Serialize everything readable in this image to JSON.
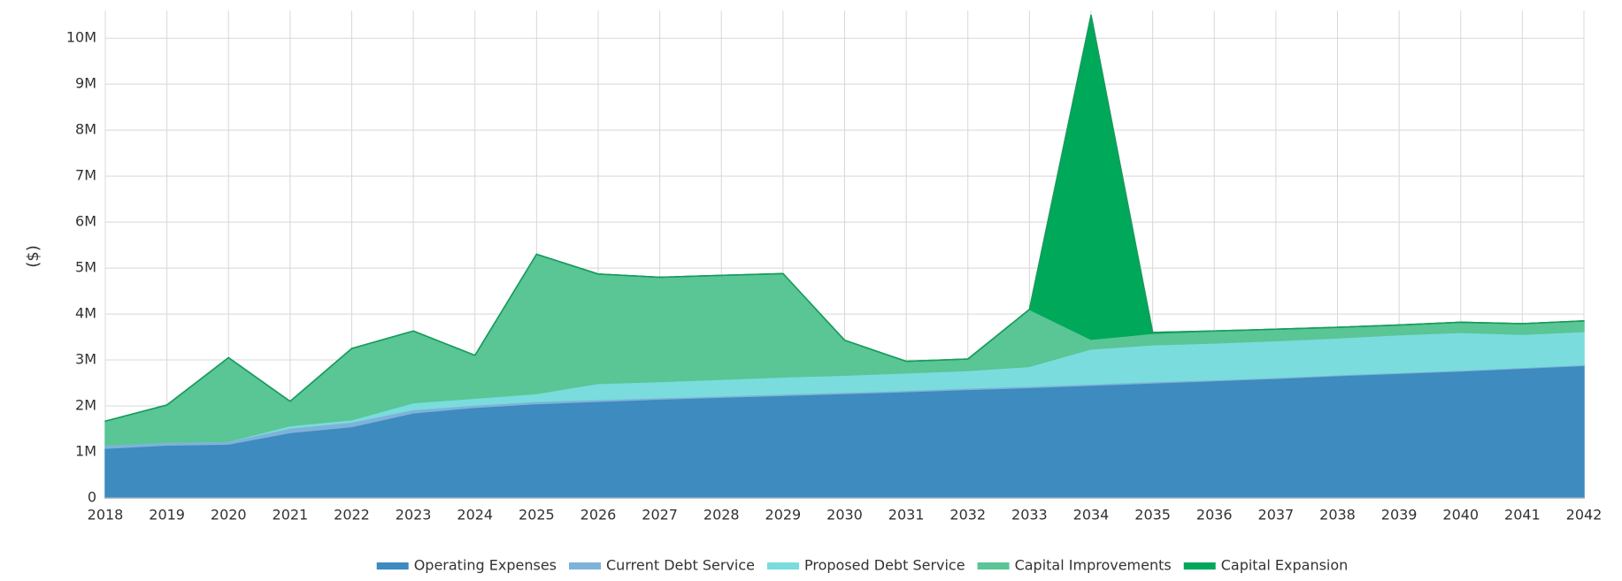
{
  "chart_data": {
    "type": "stacked_area",
    "ylabel": "($)",
    "categories": [
      "2018",
      "2019",
      "2020",
      "2021",
      "2022",
      "2023",
      "2024",
      "2025",
      "2026",
      "2027",
      "2028",
      "2029",
      "2030",
      "2031",
      "2032",
      "2033",
      "2034",
      "2035",
      "2036",
      "2037",
      "2038",
      "2039",
      "2040",
      "2041",
      "2042"
    ],
    "series": [
      {
        "name": "Operating Expenses",
        "color": "#3d8bbf",
        "values": [
          1080000,
          1150000,
          1170000,
          1420000,
          1550000,
          1850000,
          1970000,
          2050000,
          2100000,
          2150000,
          2190000,
          2230000,
          2270000,
          2310000,
          2360000,
          2400000,
          2450000,
          2500000,
          2550000,
          2600000,
          2660000,
          2710000,
          2760000,
          2820000,
          2880000
        ]
      },
      {
        "name": "Current Debt Service",
        "color": "#7fb2d9",
        "values": [
          70000,
          60000,
          60000,
          100000,
          100000,
          70000,
          50000,
          50000,
          40000,
          30000,
          30000,
          30000,
          30000,
          30000,
          30000,
          30000,
          30000,
          30000,
          20000,
          20000,
          20000,
          20000,
          20000,
          20000,
          20000
        ]
      },
      {
        "name": "Proposed Debt Service",
        "color": "#7adcdc",
        "values": [
          0,
          0,
          0,
          50000,
          50000,
          150000,
          150000,
          170000,
          350000,
          350000,
          360000,
          370000,
          370000,
          380000,
          380000,
          430000,
          760000,
          800000,
          800000,
          800000,
          800000,
          820000,
          820000,
          720000,
          720000
        ]
      },
      {
        "name": "Capital Improvements",
        "color": "#5ac595",
        "values": [
          520000,
          810000,
          1820000,
          530000,
          1550000,
          1560000,
          930000,
          3030000,
          2380000,
          2270000,
          2260000,
          2250000,
          760000,
          250000,
          250000,
          1240000,
          210000,
          250000,
          260000,
          250000,
          230000,
          210000,
          220000,
          230000,
          230000
        ]
      },
      {
        "name": "Capital Expansion",
        "color": "#00a85a",
        "values": [
          0,
          0,
          0,
          0,
          0,
          0,
          0,
          0,
          0,
          0,
          0,
          0,
          0,
          0,
          0,
          0,
          7050000,
          20000,
          0,
          0,
          0,
          0,
          0,
          0,
          0
        ]
      }
    ],
    "ylim": [
      0,
      10600000
    ],
    "yticks": [
      0,
      {
        "value": 1000000,
        "label": "1M"
      },
      {
        "value": 2000000,
        "label": "2M"
      },
      {
        "value": 3000000,
        "label": "3M"
      },
      {
        "value": 4000000,
        "label": "4M"
      },
      {
        "value": 5000000,
        "label": "5M"
      },
      {
        "value": 6000000,
        "label": "6M"
      },
      {
        "value": 7000000,
        "label": "7M"
      },
      {
        "value": 8000000,
        "label": "8M"
      },
      {
        "value": 9000000,
        "label": "9M"
      },
      {
        "value": 10000000,
        "label": "10M"
      }
    ],
    "grid": true,
    "legend": "bottom"
  }
}
